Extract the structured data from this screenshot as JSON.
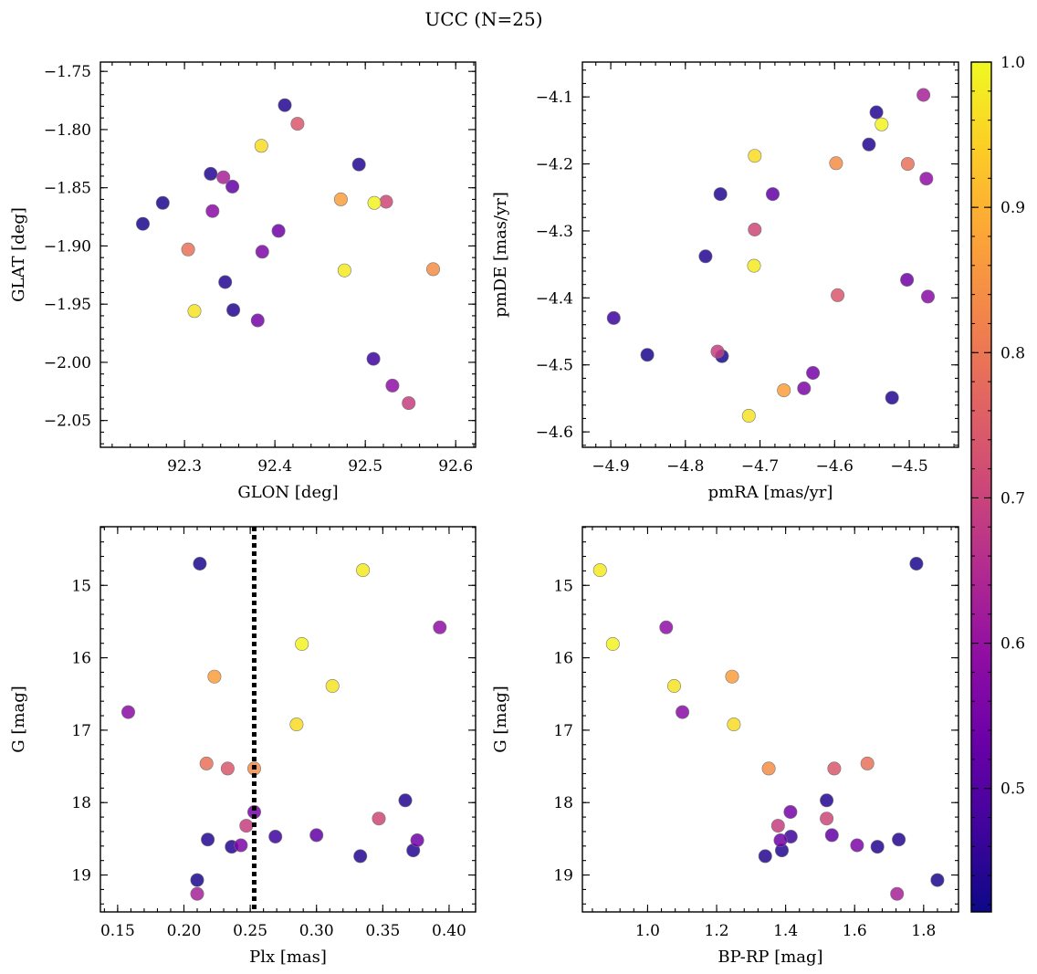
{
  "title": "UCC (N=25)",
  "colorbar": {
    "min": 0.415,
    "max": 1.0,
    "ticks": [
      0.5,
      0.6,
      0.7,
      0.8,
      0.9,
      1.0
    ],
    "colormap": "plasma"
  },
  "stars": [
    {
      "glon": 92.254,
      "glat": -1.881,
      "pmra": -4.851,
      "pmde": -4.485,
      "plx": 0.21,
      "g": 19.07,
      "bprp": 1.84,
      "prob": 0.43
    },
    {
      "glon": 92.276,
      "glat": -1.863,
      "pmra": -4.751,
      "pmde": -4.487,
      "plx": 0.212,
      "g": 14.7,
      "bprp": 1.779,
      "prob": 0.43
    },
    {
      "glon": 92.329,
      "glat": -1.838,
      "pmra": -4.753,
      "pmde": -4.245,
      "plx": 0.367,
      "g": 17.97,
      "bprp": 1.519,
      "prob": 0.44
    },
    {
      "glon": 92.345,
      "glat": -1.931,
      "pmra": -4.773,
      "pmde": -4.338,
      "plx": 0.333,
      "g": 18.74,
      "bprp": 1.341,
      "prob": 0.44
    },
    {
      "glon": 92.354,
      "glat": -1.955,
      "pmra": -4.523,
      "pmde": -4.549,
      "plx": 0.373,
      "g": 18.66,
      "bprp": 1.389,
      "prob": 0.44
    },
    {
      "glon": 92.411,
      "glat": -1.779,
      "pmra": -4.554,
      "pmde": -4.171,
      "plx": 0.218,
      "g": 18.51,
      "bprp": 1.728,
      "prob": 0.44
    },
    {
      "glon": 92.493,
      "glat": -1.83,
      "pmra": -4.544,
      "pmde": -4.123,
      "plx": 0.236,
      "g": 18.61,
      "bprp": 1.666,
      "prob": 0.44
    },
    {
      "glon": 92.509,
      "glat": -1.997,
      "pmra": -4.896,
      "pmde": -4.43,
      "plx": 0.269,
      "g": 18.47,
      "bprp": 1.415,
      "prob": 0.47
    },
    {
      "glon": 92.353,
      "glat": -1.849,
      "pmra": -4.683,
      "pmde": -4.245,
      "plx": 0.3,
      "g": 18.45,
      "bprp": 1.534,
      "prob": 0.52
    },
    {
      "glon": 92.404,
      "glat": -1.887,
      "pmra": -4.503,
      "pmde": -4.373,
      "plx": 0.376,
      "g": 18.52,
      "bprp": 1.385,
      "prob": 0.54
    },
    {
      "glon": 92.381,
      "glat": -1.964,
      "pmra": -4.629,
      "pmde": -4.512,
      "plx": 0.253,
      "g": 18.13,
      "bprp": 1.414,
      "prob": 0.55
    },
    {
      "glon": 92.386,
      "glat": -1.905,
      "pmra": -4.641,
      "pmde": -4.535,
      "plx": 0.243,
      "g": 18.59,
      "bprp": 1.607,
      "prob": 0.56
    },
    {
      "glon": 92.331,
      "glat": -1.87,
      "pmra": -4.475,
      "pmde": -4.398,
      "plx": 0.158,
      "g": 16.75,
      "bprp": 1.101,
      "prob": 0.58
    },
    {
      "glon": 92.53,
      "glat": -2.02,
      "pmra": -4.477,
      "pmde": -4.222,
      "plx": 0.393,
      "g": 15.58,
      "bprp": 1.054,
      "prob": 0.59
    },
    {
      "glon": 92.343,
      "glat": -1.841,
      "pmra": -4.481,
      "pmde": -4.097,
      "plx": 0.21,
      "g": 19.26,
      "bprp": 1.723,
      "prob": 0.63
    },
    {
      "glon": 92.548,
      "glat": -2.035,
      "pmra": -4.757,
      "pmde": -4.48,
      "plx": 0.247,
      "g": 18.32,
      "bprp": 1.378,
      "prob": 0.69
    },
    {
      "glon": 92.523,
      "glat": -1.862,
      "pmra": -4.707,
      "pmde": -4.298,
      "plx": 0.347,
      "g": 18.22,
      "bprp": 1.519,
      "prob": 0.71
    },
    {
      "glon": 92.425,
      "glat": -1.795,
      "pmra": -4.596,
      "pmde": -4.396,
      "plx": 0.233,
      "g": 17.53,
      "bprp": 1.541,
      "prob": 0.74
    },
    {
      "glon": 92.304,
      "glat": -1.903,
      "pmra": -4.502,
      "pmde": -4.2,
      "plx": 0.217,
      "g": 17.46,
      "bprp": 1.637,
      "prob": 0.79
    },
    {
      "glon": 92.575,
      "glat": -1.92,
      "pmra": -4.598,
      "pmde": -4.199,
      "plx": 0.253,
      "g": 17.53,
      "bprp": 1.351,
      "prob": 0.84
    },
    {
      "glon": 92.473,
      "glat": -1.86,
      "pmra": -4.668,
      "pmde": -4.538,
      "plx": 0.223,
      "g": 16.26,
      "bprp": 1.245,
      "prob": 0.87
    },
    {
      "glon": 92.385,
      "glat": -1.814,
      "pmra": -4.707,
      "pmde": -4.188,
      "plx": 0.285,
      "g": 16.92,
      "bprp": 1.25,
      "prob": 0.96
    },
    {
      "glon": 92.311,
      "glat": -1.956,
      "pmra": -4.715,
      "pmde": -4.576,
      "plx": 0.312,
      "g": 16.39,
      "bprp": 1.077,
      "prob": 0.97
    },
    {
      "glon": 92.477,
      "glat": -1.921,
      "pmra": -4.708,
      "pmde": -4.352,
      "plx": 0.335,
      "g": 14.79,
      "bprp": 0.862,
      "prob": 0.98
    },
    {
      "glon": 92.51,
      "glat": -1.863,
      "pmra": -4.537,
      "pmde": -4.141,
      "plx": 0.289,
      "g": 15.81,
      "bprp": 0.899,
      "prob": 0.99
    }
  ],
  "chart_data": [
    {
      "type": "scatter",
      "x_field": "glon",
      "y_field": "glat",
      "xlabel": "GLON [deg]",
      "ylabel": "GLAT [deg]",
      "xlim": [
        92.207,
        92.622
      ],
      "ylim": [
        -2.073,
        -1.742
      ],
      "xticks": [
        92.3,
        92.4,
        92.5,
        92.6
      ],
      "yticks": [
        -1.75,
        -1.8,
        -1.85,
        -1.9,
        -1.95,
        -2.0,
        -2.05
      ],
      "xdec": 1,
      "ydec": 2
    },
    {
      "type": "scatter",
      "x_field": "pmra",
      "y_field": "pmde",
      "xlabel": "pmRA [mas/yr]",
      "ylabel": "pmDE [mas/yr]",
      "xlim": [
        -4.938,
        -4.434
      ],
      "ylim": [
        -4.623,
        -4.048
      ],
      "xticks": [
        -4.9,
        -4.8,
        -4.7,
        -4.6,
        -4.5
      ],
      "yticks": [
        -4.1,
        -4.2,
        -4.3,
        -4.4,
        -4.5,
        -4.6
      ],
      "xdec": 1,
      "ydec": 1
    },
    {
      "type": "scatter",
      "x_field": "plx",
      "y_field": "g",
      "xlabel": "Plx [mas]",
      "ylabel": "G [mag]",
      "xlim": [
        0.137,
        0.42
      ],
      "ylim": [
        19.51,
        14.19
      ],
      "y_inverted": true,
      "xticks": [
        0.15,
        0.2,
        0.25,
        0.3,
        0.35,
        0.4
      ],
      "yticks": [
        15,
        16,
        17,
        18,
        19
      ],
      "xdec": 2,
      "ydec": 0,
      "vline": 0.253
    },
    {
      "type": "scatter",
      "x_field": "bprp",
      "y_field": "g",
      "xlabel": "BP-RP [mag]",
      "ylabel": "G [mag]",
      "xlim": [
        0.811,
        1.901
      ],
      "ylim": [
        19.51,
        14.19
      ],
      "y_inverted": true,
      "xticks": [
        1.0,
        1.2,
        1.4,
        1.6,
        1.8
      ],
      "yticks": [
        15,
        16,
        17,
        18,
        19
      ],
      "xdec": 1,
      "ydec": 0
    }
  ]
}
